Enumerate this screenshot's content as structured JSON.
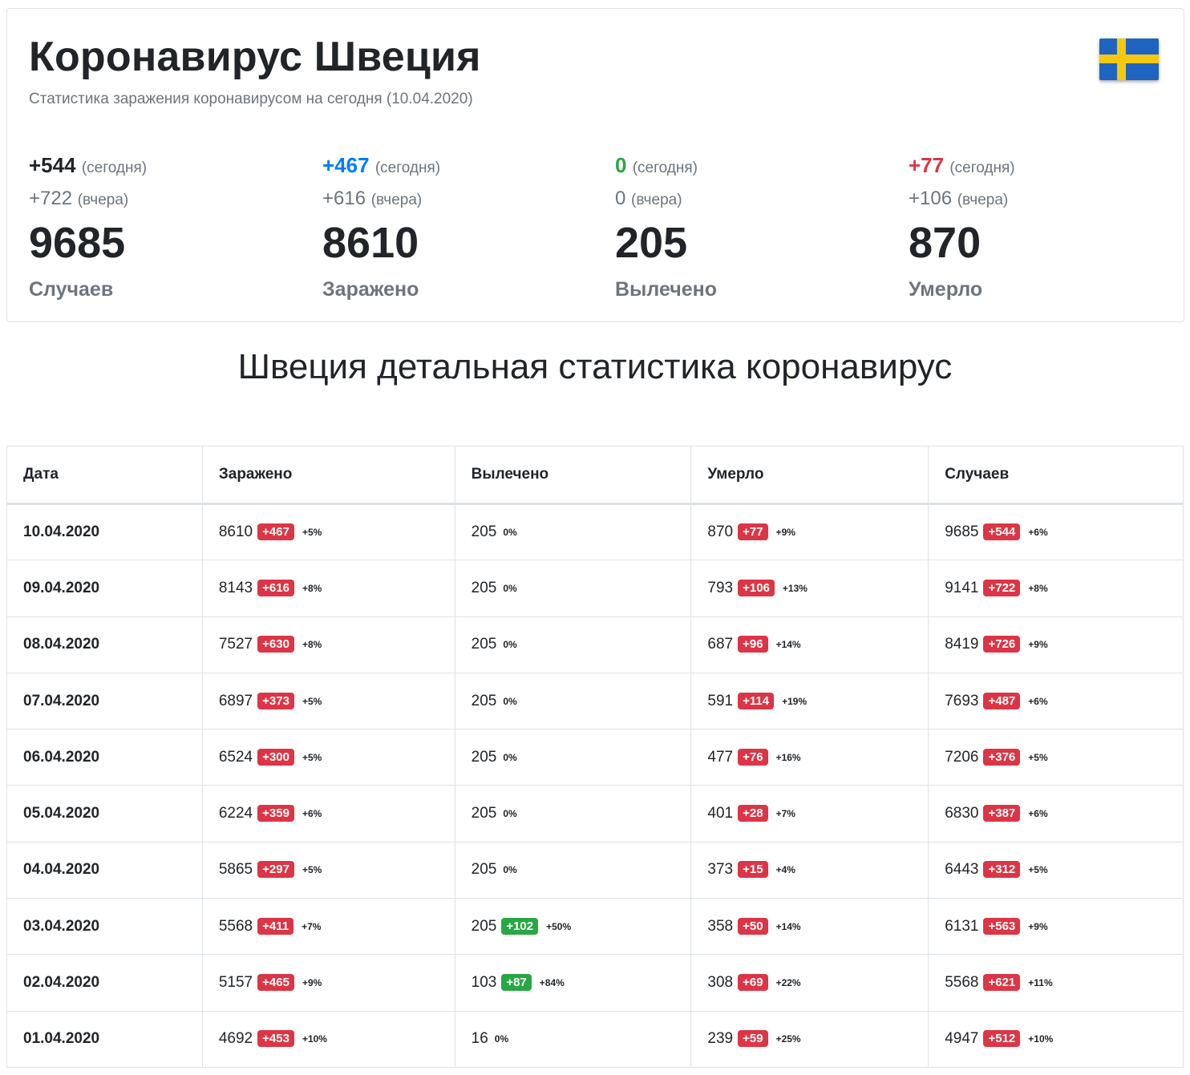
{
  "header": {
    "title": "Коронавирус Швеция",
    "subtitle": "Статистика заражения коронавирусом на сегодня (10.04.2020)",
    "flag_icon": "sweden-flag-icon"
  },
  "stats": [
    {
      "today": "+544",
      "today_label": "(сегодня)",
      "yesterday": "+722",
      "yesterday_label": "(вчера)",
      "total": "9685",
      "label": "Случаев",
      "color": "#212529"
    },
    {
      "today": "+467",
      "today_label": "(сегодня)",
      "yesterday": "+616",
      "yesterday_label": "(вчера)",
      "total": "8610",
      "label": "Заражено",
      "color": "#007bff"
    },
    {
      "today": "0",
      "today_label": "(сегодня)",
      "yesterday": "0",
      "yesterday_label": "(вчера)",
      "total": "205",
      "label": "Вылечено",
      "color": "#28a745"
    },
    {
      "today": "+77",
      "today_label": "(сегодня)",
      "yesterday": "+106",
      "yesterday_label": "(вчера)",
      "total": "870",
      "label": "Умерло",
      "color": "#dc3545"
    }
  ],
  "section_title": "Швеция детальная статистика коронавирус",
  "table": {
    "headers": [
      "Дата",
      "Заражено",
      "Вылечено",
      "Умерло",
      "Случаев"
    ],
    "rows": [
      {
        "date": "10.04.2020",
        "infected": [
          "8610",
          "+467",
          "+5%"
        ],
        "recovered": [
          "205",
          "",
          "0%"
        ],
        "died": [
          "870",
          "+77",
          "+9%"
        ],
        "cases": [
          "9685",
          "+544",
          "+6%"
        ]
      },
      {
        "date": "09.04.2020",
        "infected": [
          "8143",
          "+616",
          "+8%"
        ],
        "recovered": [
          "205",
          "",
          "0%"
        ],
        "died": [
          "793",
          "+106",
          "+13%"
        ],
        "cases": [
          "9141",
          "+722",
          "+8%"
        ]
      },
      {
        "date": "08.04.2020",
        "infected": [
          "7527",
          "+630",
          "+8%"
        ],
        "recovered": [
          "205",
          "",
          "0%"
        ],
        "died": [
          "687",
          "+96",
          "+14%"
        ],
        "cases": [
          "8419",
          "+726",
          "+9%"
        ]
      },
      {
        "date": "07.04.2020",
        "infected": [
          "6897",
          "+373",
          "+5%"
        ],
        "recovered": [
          "205",
          "",
          "0%"
        ],
        "died": [
          "591",
          "+114",
          "+19%"
        ],
        "cases": [
          "7693",
          "+487",
          "+6%"
        ]
      },
      {
        "date": "06.04.2020",
        "infected": [
          "6524",
          "+300",
          "+5%"
        ],
        "recovered": [
          "205",
          "",
          "0%"
        ],
        "died": [
          "477",
          "+76",
          "+16%"
        ],
        "cases": [
          "7206",
          "+376",
          "+5%"
        ]
      },
      {
        "date": "05.04.2020",
        "infected": [
          "6224",
          "+359",
          "+6%"
        ],
        "recovered": [
          "205",
          "",
          "0%"
        ],
        "died": [
          "401",
          "+28",
          "+7%"
        ],
        "cases": [
          "6830",
          "+387",
          "+6%"
        ]
      },
      {
        "date": "04.04.2020",
        "infected": [
          "5865",
          "+297",
          "+5%"
        ],
        "recovered": [
          "205",
          "",
          "0%"
        ],
        "died": [
          "373",
          "+15",
          "+4%"
        ],
        "cases": [
          "6443",
          "+312",
          "+5%"
        ]
      },
      {
        "date": "03.04.2020",
        "infected": [
          "5568",
          "+411",
          "+7%"
        ],
        "recovered": [
          "205",
          "+102",
          "+50%"
        ],
        "died": [
          "358",
          "+50",
          "+14%"
        ],
        "cases": [
          "6131",
          "+563",
          "+9%"
        ]
      },
      {
        "date": "02.04.2020",
        "infected": [
          "5157",
          "+465",
          "+9%"
        ],
        "recovered": [
          "103",
          "+87",
          "+84%"
        ],
        "died": [
          "308",
          "+69",
          "+22%"
        ],
        "cases": [
          "5568",
          "+621",
          "+11%"
        ]
      },
      {
        "date": "01.04.2020",
        "infected": [
          "4692",
          "+453",
          "+10%"
        ],
        "recovered": [
          "16",
          "",
          "0%"
        ],
        "died": [
          "239",
          "+59",
          "+25%"
        ],
        "cases": [
          "4947",
          "+512",
          "+10%"
        ]
      }
    ]
  }
}
